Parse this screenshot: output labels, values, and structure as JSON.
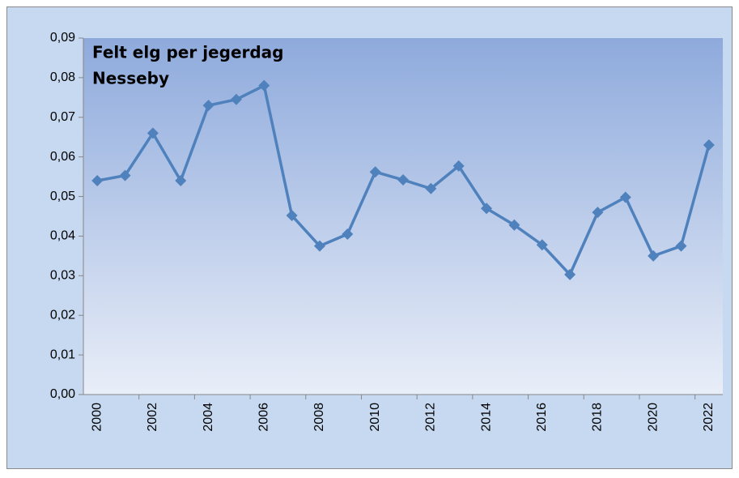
{
  "chart_data": {
    "type": "line",
    "title": "Felt elg per jegerdag",
    "subtitle": "Nesseby",
    "categories": [
      "2000",
      null,
      "2002",
      null,
      "2004",
      null,
      "2006",
      null,
      "2008",
      null,
      "2010",
      null,
      "2012",
      null,
      "2014",
      null,
      "2016",
      null,
      "2018",
      null,
      "2020",
      null,
      "2022"
    ],
    "series": [
      {
        "name": "Felt elg per jegerdag",
        "color": "#4f81bd",
        "values": [
          0.054,
          0.0553,
          0.066,
          0.054,
          0.073,
          0.0745,
          0.078,
          0.0452,
          0.0375,
          0.0405,
          0.0562,
          0.0542,
          0.052,
          0.0577,
          0.047,
          0.0428,
          0.0378,
          0.0303,
          0.046,
          0.0498,
          0.035,
          0.0375,
          0.063
        ]
      }
    ],
    "ylim": [
      0,
      0.09
    ],
    "yticks": [
      {
        "value": 0,
        "label": "0,00"
      },
      {
        "value": 0.01,
        "label": "0,01"
      },
      {
        "value": 0.02,
        "label": "0,02"
      },
      {
        "value": 0.03,
        "label": "0,03"
      },
      {
        "value": 0.04,
        "label": "0,04"
      },
      {
        "value": 0.05,
        "label": "0,05"
      },
      {
        "value": 0.06,
        "label": "0,06"
      },
      {
        "value": 0.07,
        "label": "0,07"
      },
      {
        "value": 0.08,
        "label": "0,08"
      },
      {
        "value": 0.09,
        "label": "0,09"
      }
    ],
    "grid": false
  }
}
